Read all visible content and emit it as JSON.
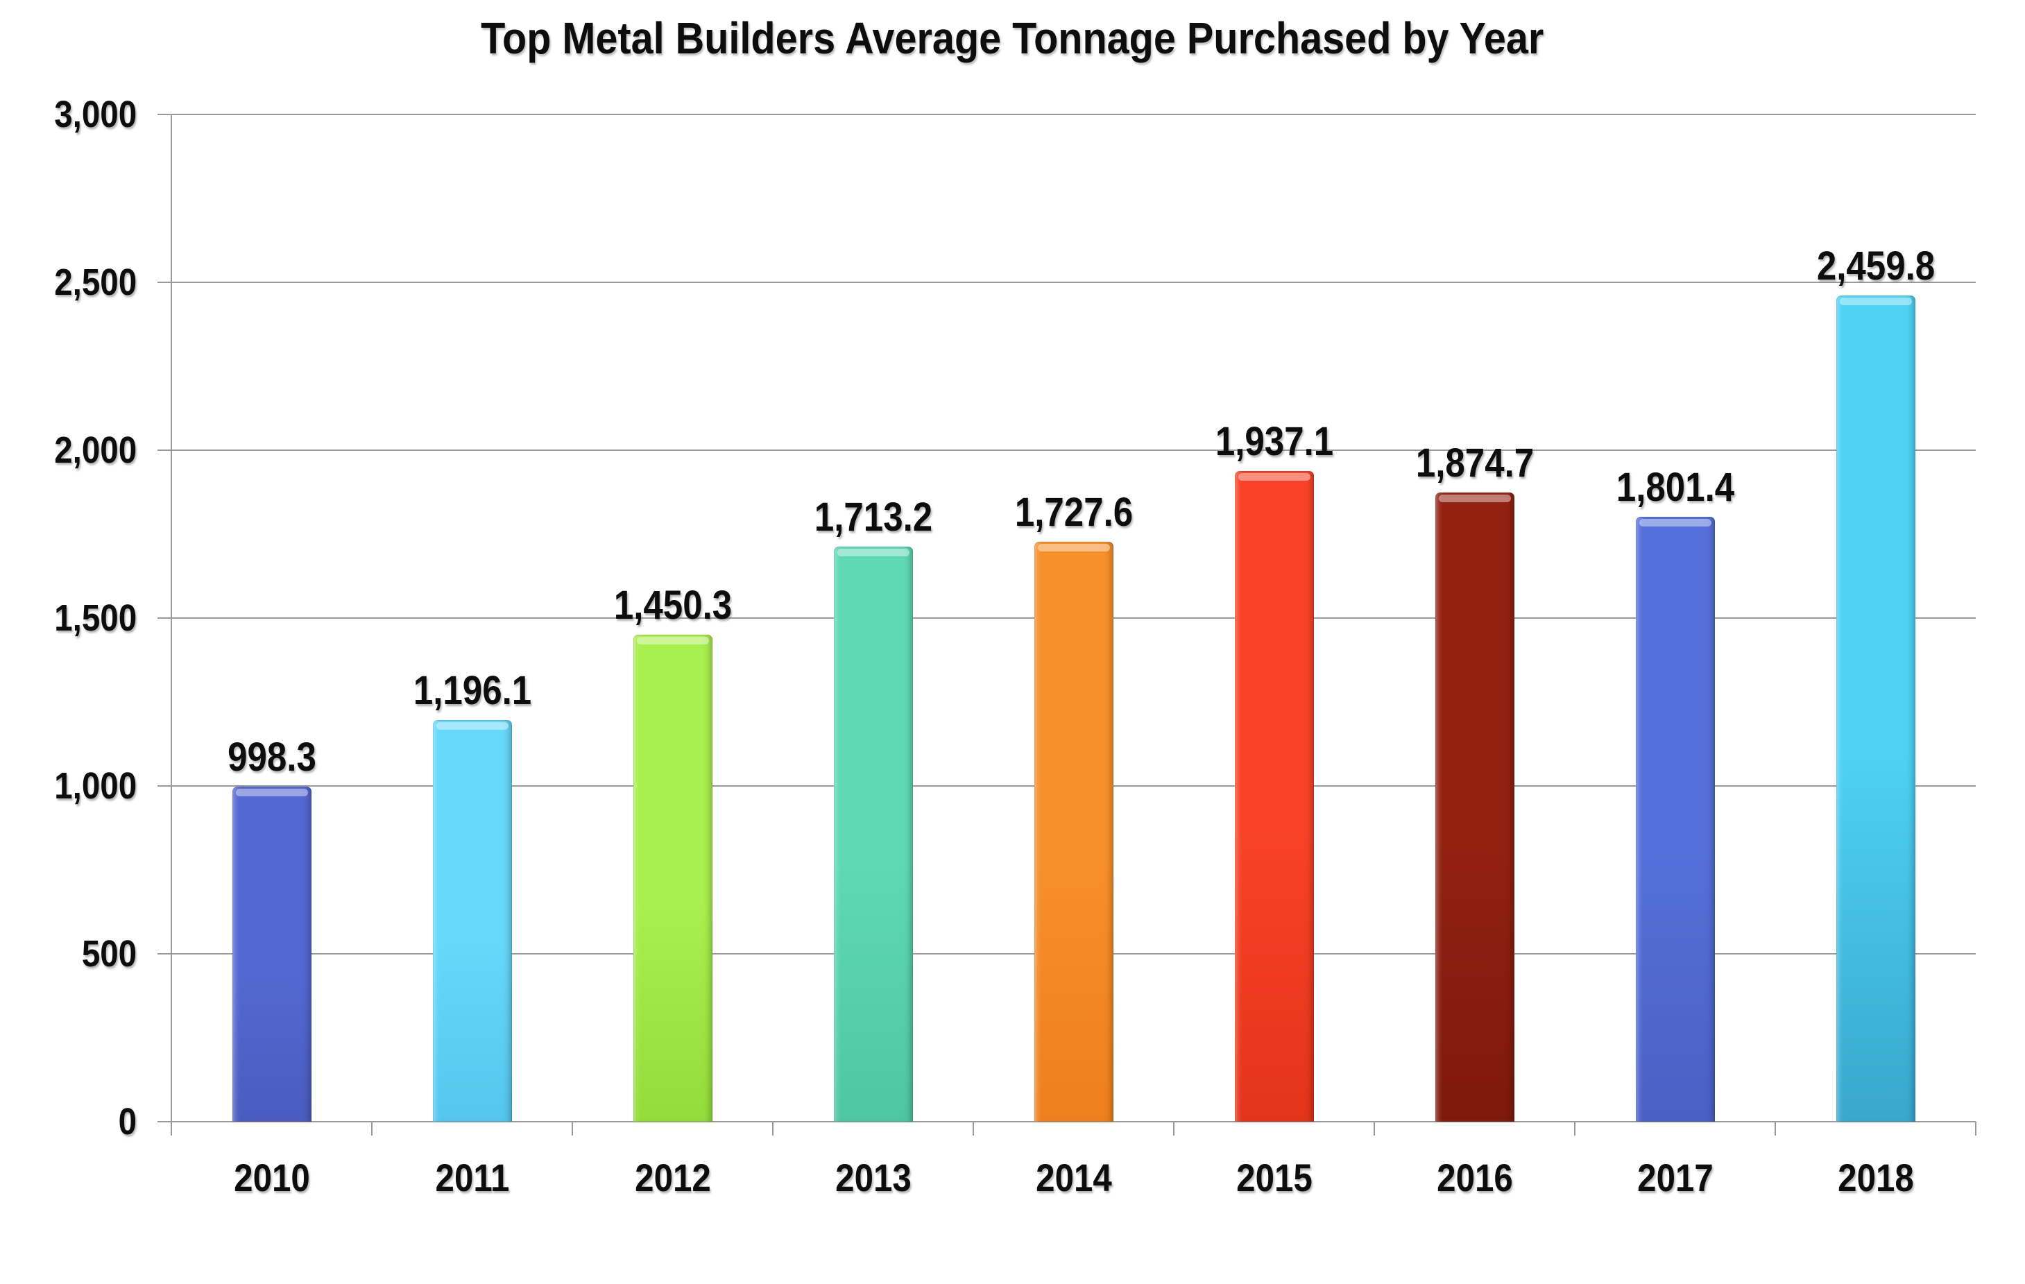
{
  "chart_data": {
    "type": "bar",
    "title": "Top Metal Builders Average Tonnage Purchased by Year",
    "xlabel": "",
    "ylabel": "",
    "categories": [
      "2010",
      "2011",
      "2012",
      "2013",
      "2014",
      "2015",
      "2016",
      "2017",
      "2018"
    ],
    "values": [
      998.3,
      1196.1,
      1450.3,
      1713.2,
      1727.6,
      1937.1,
      1874.7,
      1801.4,
      2459.8
    ],
    "data_labels": [
      "998.3",
      "1,196.1",
      "1,450.3",
      "1,713.2",
      "1,727.6",
      "1,937.1",
      "1,874.7",
      "1,801.4",
      "2,459.8"
    ],
    "ylim": [
      0,
      3000
    ],
    "ytick_interval": 500,
    "ytick_labels": [
      "0",
      "500",
      "1,000",
      "1,500",
      "2,000",
      "2,500",
      "3,000"
    ],
    "grid": true,
    "legend_position": "none",
    "background_color": "#ffffff",
    "gridline_color": "#9a9a9a",
    "text_color": "#0d0d0d",
    "bar_colors": [
      {
        "base": "#5368d2",
        "dark": "#4a5cbf"
      },
      {
        "base": "#66d8fa",
        "dark": "#55c6ee"
      },
      {
        "base": "#a9ef4e",
        "dark": "#94dc3a"
      },
      {
        "base": "#5ed9b3",
        "dark": "#4fc6a2"
      },
      {
        "base": "#f78f2b",
        "dark": "#ef7f1d"
      },
      {
        "base": "#f94227",
        "dark": "#e3341a"
      },
      {
        "base": "#932112",
        "dark": "#7e190c"
      },
      {
        "base": "#5570da",
        "dark": "#4a60c4"
      },
      {
        "base": "#4ed2f4",
        "dark": "#38a7ce"
      }
    ]
  }
}
